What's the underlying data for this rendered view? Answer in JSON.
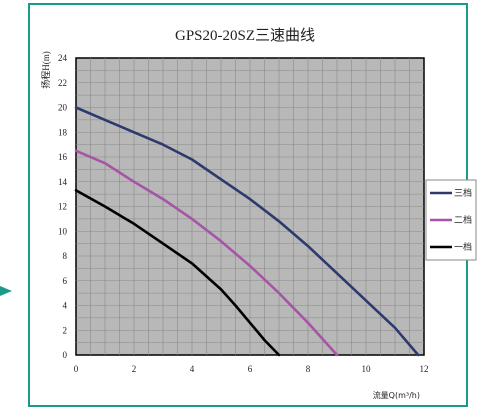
{
  "chart_data": {
    "type": "line",
    "title": "GPS20-20SZ三速曲线",
    "xlabel": "流量Q(m³/h)",
    "ylabel": "扬程H(m)",
    "xlim": [
      0,
      12
    ],
    "ylim": [
      0,
      24
    ],
    "x_ticks": [
      "0",
      "2",
      "4",
      "6",
      "8",
      "10",
      "12"
    ],
    "y_ticks": [
      "0",
      "2",
      "4",
      "6",
      "8",
      "10",
      "12",
      "14",
      "16",
      "18",
      "20",
      "22",
      "24"
    ],
    "grid": true,
    "legend_position": "right",
    "series": [
      {
        "name": "三档",
        "color": "#2e3a6e",
        "points": [
          [
            0,
            20
          ],
          [
            1,
            19
          ],
          [
            2,
            18
          ],
          [
            3,
            17
          ],
          [
            4,
            15.8
          ],
          [
            5,
            14.2
          ],
          [
            6,
            12.6
          ],
          [
            7,
            10.8
          ],
          [
            8,
            8.8
          ],
          [
            9,
            6.6
          ],
          [
            10,
            4.4
          ],
          [
            11,
            2.2
          ],
          [
            11.8,
            0
          ]
        ]
      },
      {
        "name": "二档",
        "color": "#a655a6",
        "points": [
          [
            0,
            16.5
          ],
          [
            1,
            15.5
          ],
          [
            2,
            14
          ],
          [
            3,
            12.6
          ],
          [
            4,
            11
          ],
          [
            5,
            9.2
          ],
          [
            6,
            7.2
          ],
          [
            7,
            5
          ],
          [
            8,
            2.6
          ],
          [
            9,
            0
          ]
        ]
      },
      {
        "name": "一档",
        "color": "#000000",
        "points": [
          [
            0,
            13.3
          ],
          [
            1,
            12
          ],
          [
            2,
            10.6
          ],
          [
            3,
            9
          ],
          [
            4,
            7.4
          ],
          [
            5,
            5.3
          ],
          [
            5.5,
            4
          ],
          [
            6,
            2.6
          ],
          [
            6.5,
            1.2
          ],
          [
            7,
            0
          ]
        ]
      }
    ]
  }
}
